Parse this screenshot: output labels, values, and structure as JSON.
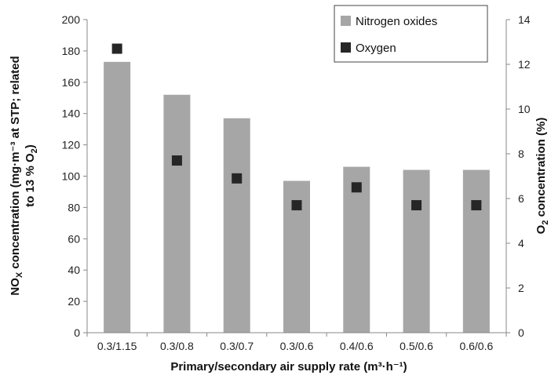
{
  "chart_data": {
    "type": "bar",
    "categories": [
      "0.3/1.15",
      "0.3/0.8",
      "0.3/0.7",
      "0.3/0.6",
      "0.4/0.6",
      "0.5/0.6",
      "0.6/0.6"
    ],
    "series": [
      {
        "name": "Nitrogen oxides",
        "type": "bar",
        "axis": "left",
        "color": "#a6a6a6",
        "values": [
          173,
          152,
          137,
          97,
          106,
          104,
          104
        ]
      },
      {
        "name": "Oxygen",
        "type": "scatter",
        "axis": "right",
        "color": "#262626",
        "values": [
          12.7,
          7.7,
          6.9,
          5.7,
          6.5,
          5.7,
          5.7
        ]
      }
    ],
    "xlabel": "Primary/secondary air supply rate (m³·h⁻¹)",
    "ylabel": {
      "line1_pre": "NO",
      "line1_sub": "X",
      "line1_post": " concentration (mg·m⁻³ at STP; related",
      "line2_pre": "to 13 % O",
      "line2_sub": "2",
      "line2_post": ")"
    },
    "y2label": {
      "pre": "O",
      "sub": "2",
      "post": " concentration (%)"
    },
    "ylim": [
      0,
      200
    ],
    "yticks": [
      0,
      20,
      40,
      60,
      80,
      100,
      120,
      140,
      160,
      180,
      200
    ],
    "y2lim": [
      0,
      14
    ],
    "y2ticks": [
      0,
      2,
      4,
      6,
      8,
      10,
      12,
      14
    ],
    "grid": false,
    "legend": "top-right"
  }
}
